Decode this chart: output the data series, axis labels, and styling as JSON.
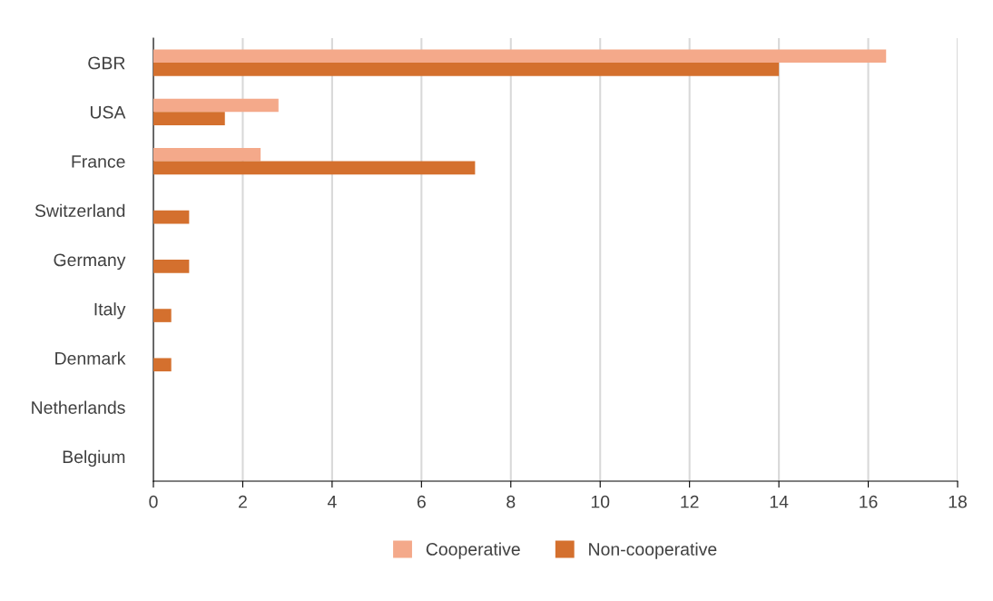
{
  "chart_data": {
    "type": "bar",
    "orientation": "horizontal",
    "categories": [
      "GBR",
      "USA",
      "France",
      "Switzerland",
      "Germany",
      "Italy",
      "Denmark",
      "Netherlands",
      "Belgium"
    ],
    "series": [
      {
        "name": "Cooperative",
        "color": "#f4a98a",
        "values": [
          16.4,
          2.8,
          2.4,
          0,
          0,
          0,
          0,
          0,
          0
        ]
      },
      {
        "name": "Non-cooperative",
        "color": "#d4702e",
        "values": [
          14.0,
          1.6,
          7.2,
          0.8,
          0.8,
          0.4,
          0.4,
          0,
          0
        ]
      }
    ],
    "xlim": [
      0,
      18
    ],
    "xticks": [
      0,
      2,
      4,
      6,
      8,
      10,
      12,
      14,
      16,
      18
    ],
    "grid": "x",
    "legend": "bottom"
  }
}
